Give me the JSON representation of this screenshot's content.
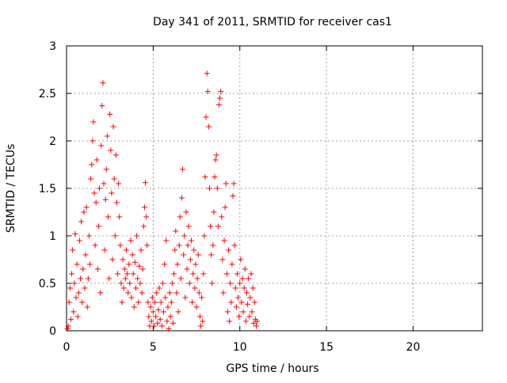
{
  "chart_data": {
    "type": "scatter",
    "title": "Day 341 of 2011, SRMTID for receiver cas1",
    "xlabel": "GPS time / hours",
    "ylabel": "SRMTID / TECUs",
    "xlim": [
      0,
      24
    ],
    "ylim": [
      0,
      3
    ],
    "xticks": [
      0,
      5,
      10,
      15,
      20
    ],
    "yticks": [
      0,
      0.5,
      1,
      1.5,
      2,
      2.5,
      3
    ],
    "xtick_labels": [
      "0",
      "5",
      "10",
      "15",
      "20"
    ],
    "ytick_labels": [
      "0",
      "0.5",
      "1",
      "1.5",
      "2",
      "2.5",
      "3"
    ],
    "grid": true,
    "marker": "+",
    "color": "#ff0000",
    "series": [
      {
        "name": "cas1",
        "points": [
          [
            0.05,
            0.02
          ],
          [
            0.1,
            0.05
          ],
          [
            0.15,
            0.3
          ],
          [
            0.2,
            0.45
          ],
          [
            0.25,
            0.12
          ],
          [
            0.3,
            0.6
          ],
          [
            0.35,
            0.85
          ],
          [
            0.4,
            0.2
          ],
          [
            0.45,
            0.5
          ],
          [
            0.5,
            1.02
          ],
          [
            0.55,
            0.35
          ],
          [
            0.6,
            0.7
          ],
          [
            0.65,
            0.15
          ],
          [
            0.7,
            0.4
          ],
          [
            0.75,
            0.95
          ],
          [
            0.8,
            0.55
          ],
          [
            0.85,
            1.15
          ],
          [
            0.9,
            0.3
          ],
          [
            0.95,
            0.65
          ],
          [
            1.0,
            1.25
          ],
          [
            1.05,
            0.45
          ],
          [
            1.1,
            0.8
          ],
          [
            1.15,
            1.3
          ],
          [
            1.2,
            0.25
          ],
          [
            1.25,
            0.55
          ],
          [
            1.3,
            1.0
          ],
          [
            1.35,
            0.7
          ],
          [
            1.4,
            1.6
          ],
          [
            1.45,
            1.75
          ],
          [
            1.5,
            2.0
          ],
          [
            1.55,
            2.2
          ],
          [
            1.6,
            1.45
          ],
          [
            1.65,
            0.9
          ],
          [
            1.7,
            1.35
          ],
          [
            1.75,
            1.8
          ],
          [
            1.8,
            0.65
          ],
          [
            1.85,
            1.1
          ],
          [
            1.9,
            1.5
          ],
          [
            1.95,
            0.4
          ],
          [
            2.0,
            1.95
          ],
          [
            2.05,
            2.37
          ],
          [
            2.1,
            2.61
          ],
          [
            2.15,
            1.55
          ],
          [
            2.2,
            0.85
          ],
          [
            2.25,
            1.38
          ],
          [
            2.3,
            1.7
          ],
          [
            2.35,
            2.05
          ],
          [
            2.4,
            1.2
          ],
          [
            2.45,
            0.55
          ],
          [
            2.5,
            2.28
          ],
          [
            2.55,
            1.9
          ],
          [
            2.6,
            1.45
          ],
          [
            2.65,
            0.75
          ],
          [
            2.7,
            2.15
          ],
          [
            2.75,
            1.6
          ],
          [
            2.8,
            1.0
          ],
          [
            2.85,
            1.85
          ],
          [
            2.9,
            1.35
          ],
          [
            2.95,
            0.6
          ],
          [
            3.0,
            1.55
          ],
          [
            3.05,
            1.2
          ],
          [
            3.1,
            0.9
          ],
          [
            3.15,
            0.5
          ],
          [
            3.2,
            0.3
          ],
          [
            3.25,
            0.75
          ],
          [
            3.3,
            0.45
          ],
          [
            3.35,
            0.65
          ],
          [
            3.4,
            0.55
          ],
          [
            3.45,
            0.85
          ],
          [
            3.5,
            0.6
          ],
          [
            3.55,
            0.4
          ],
          [
            3.6,
            0.7
          ],
          [
            3.65,
            0.5
          ],
          [
            3.7,
            0.95
          ],
          [
            3.75,
            0.35
          ],
          [
            3.8,
            0.8
          ],
          [
            3.85,
            0.6
          ],
          [
            3.9,
            0.25
          ],
          [
            3.95,
            0.72
          ],
          [
            4.0,
            0.45
          ],
          [
            4.05,
            1.0
          ],
          [
            4.1,
            0.55
          ],
          [
            4.15,
            0.3
          ],
          [
            4.2,
            0.68
          ],
          [
            4.25,
            0.5
          ],
          [
            4.3,
            0.85
          ],
          [
            4.35,
            0.4
          ],
          [
            4.4,
            0.65
          ],
          [
            4.45,
            1.1
          ],
          [
            4.5,
            1.3
          ],
          [
            4.55,
            1.56
          ],
          [
            4.6,
            1.2
          ],
          [
            4.65,
            0.9
          ],
          [
            4.7,
            0.3
          ],
          [
            4.75,
            0.15
          ],
          [
            4.8,
            0.05
          ],
          [
            4.85,
            0.25
          ],
          [
            4.9,
            0.1
          ],
          [
            4.95,
            0.35
          ],
          [
            5.0,
            0.2
          ],
          [
            5.05,
            0.05
          ],
          [
            5.1,
            0.3
          ],
          [
            5.15,
            0.15
          ],
          [
            5.2,
            0.4
          ],
          [
            5.25,
            0.08
          ],
          [
            5.3,
            0.22
          ],
          [
            5.35,
            0.45
          ],
          [
            5.4,
            0.12
          ],
          [
            5.45,
            0.3
          ],
          [
            5.5,
            0.05
          ],
          [
            5.55,
            0.5
          ],
          [
            5.6,
            0.2
          ],
          [
            5.65,
            0.7
          ],
          [
            5.7,
            0.35
          ],
          [
            5.75,
            0.95
          ],
          [
            5.8,
            0.1
          ],
          [
            5.85,
            0.25
          ],
          [
            5.9,
            0.02
          ],
          [
            5.95,
            0.4
          ],
          [
            6.0,
            0.15
          ],
          [
            6.05,
            0.3
          ],
          [
            6.1,
            0.5
          ],
          [
            6.15,
            0.08
          ],
          [
            6.2,
            0.6
          ],
          [
            6.25,
            0.85
          ],
          [
            6.3,
            1.05
          ],
          [
            6.35,
            0.4
          ],
          [
            6.4,
            0.7
          ],
          [
            6.45,
            0.2
          ],
          [
            6.5,
            0.9
          ],
          [
            6.55,
            1.2
          ],
          [
            6.6,
            0.55
          ],
          [
            6.65,
            1.4
          ],
          [
            6.7,
            1.7
          ],
          [
            6.75,
            0.8
          ],
          [
            6.8,
            1.0
          ],
          [
            6.85,
            0.35
          ],
          [
            6.9,
            1.25
          ],
          [
            6.95,
            0.65
          ],
          [
            7.0,
            0.9
          ],
          [
            7.05,
            1.1
          ],
          [
            7.1,
            0.5
          ],
          [
            7.15,
            0.75
          ],
          [
            7.2,
            0.95
          ],
          [
            7.25,
            0.3
          ],
          [
            7.3,
            0.6
          ],
          [
            7.35,
            0.85
          ],
          [
            7.4,
            0.45
          ],
          [
            7.45,
            0.7
          ],
          [
            7.5,
            0.25
          ],
          [
            7.55,
            0.55
          ],
          [
            7.6,
            0.8
          ],
          [
            7.65,
            0.4
          ],
          [
            7.7,
            0.15
          ],
          [
            7.75,
            0.05
          ],
          [
            7.8,
            0.35
          ],
          [
            7.85,
            0.1
          ],
          [
            7.9,
            0.6
          ],
          [
            7.95,
            1.0
          ],
          [
            8.0,
            1.62
          ],
          [
            8.05,
            2.25
          ],
          [
            8.1,
            2.71
          ],
          [
            8.15,
            2.52
          ],
          [
            8.2,
            2.15
          ],
          [
            8.25,
            1.5
          ],
          [
            8.3,
            1.1
          ],
          [
            8.35,
            0.8
          ],
          [
            8.4,
            0.5
          ],
          [
            8.45,
            0.9
          ],
          [
            8.5,
            1.25
          ],
          [
            8.55,
            1.62
          ],
          [
            8.6,
            1.8
          ],
          [
            8.65,
            1.85
          ],
          [
            8.7,
            1.5
          ],
          [
            8.75,
            1.1
          ],
          [
            8.8,
            2.38
          ],
          [
            8.85,
            2.45
          ],
          [
            8.9,
            2.52
          ],
          [
            8.95,
            1.2
          ],
          [
            9.0,
            0.75
          ],
          [
            9.05,
            0.4
          ],
          [
            9.1,
            0.95
          ],
          [
            9.15,
            1.3
          ],
          [
            9.2,
            1.55
          ],
          [
            9.25,
            0.6
          ],
          [
            9.3,
            0.2
          ],
          [
            9.35,
            0.85
          ],
          [
            9.4,
            0.1
          ],
          [
            9.45,
            0.5
          ],
          [
            9.5,
            0.3
          ],
          [
            9.55,
            0.7
          ],
          [
            9.6,
            1.42
          ],
          [
            9.65,
            1.55
          ],
          [
            9.7,
            0.9
          ],
          [
            9.75,
            0.45
          ],
          [
            9.8,
            0.25
          ],
          [
            9.85,
            0.6
          ],
          [
            9.9,
            0.35
          ],
          [
            9.95,
            0.15
          ],
          [
            10.0,
            0.5
          ],
          [
            10.05,
            0.75
          ],
          [
            10.1,
            0.3
          ],
          [
            10.15,
            0.55
          ],
          [
            10.2,
            0.2
          ],
          [
            10.25,
            0.45
          ],
          [
            10.3,
            0.65
          ],
          [
            10.35,
            0.1
          ],
          [
            10.4,
            0.4
          ],
          [
            10.45,
            0.28
          ],
          [
            10.5,
            0.55
          ],
          [
            10.55,
            0.15
          ],
          [
            10.6,
            0.35
          ],
          [
            10.65,
            0.6
          ],
          [
            10.7,
            0.2
          ],
          [
            10.75,
            0.45
          ],
          [
            10.8,
            0.08
          ],
          [
            10.85,
            0.3
          ],
          [
            10.9,
            0.12
          ],
          [
            10.95,
            0.05
          ],
          [
            11.0,
            0.1
          ]
        ]
      }
    ]
  }
}
